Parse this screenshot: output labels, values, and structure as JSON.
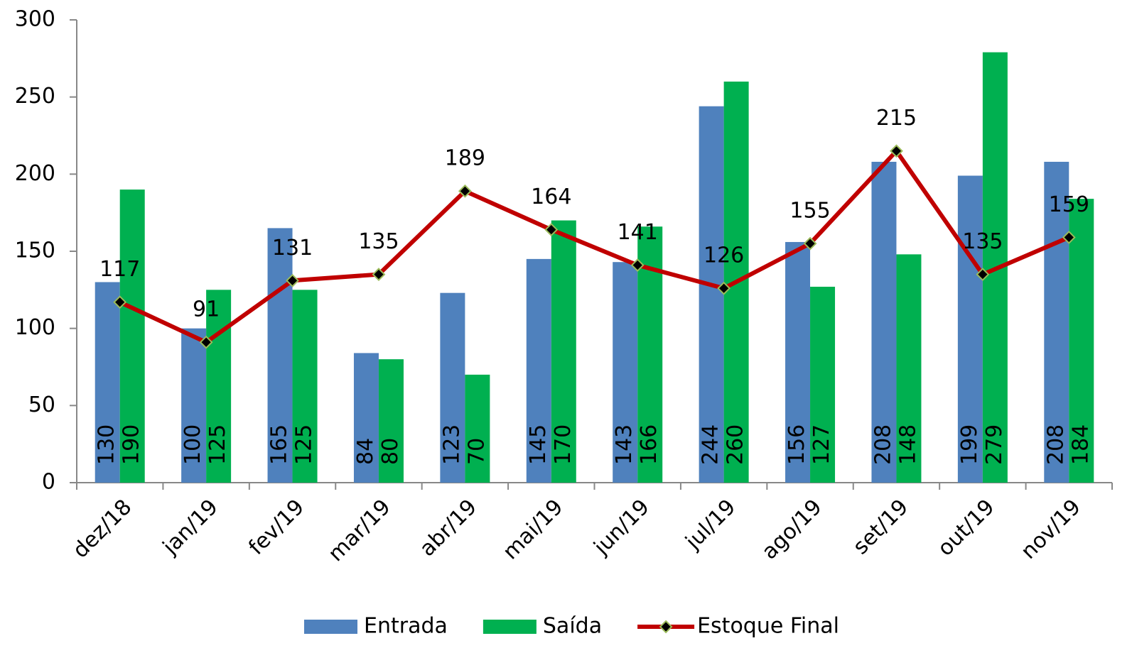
{
  "chart_data": {
    "type": "bar",
    "categories": [
      "dez/18",
      "jan/19",
      "fev/19",
      "mar/19",
      "abr/19",
      "mai/19",
      "jun/19",
      "jul/19",
      "ago/19",
      "set/19",
      "out/19",
      "nov/19"
    ],
    "series": [
      {
        "name": "Entrada",
        "color": "#4f81bd",
        "values": [
          130,
          100,
          165,
          84,
          123,
          145,
          143,
          244,
          156,
          208,
          199,
          208
        ]
      },
      {
        "name": "Saída",
        "color": "#00b050",
        "values": [
          190,
          125,
          125,
          80,
          70,
          170,
          166,
          260,
          127,
          148,
          279,
          184
        ]
      },
      {
        "name": "Estoque Final",
        "color": "#c00000",
        "type": "line",
        "values": [
          117,
          91,
          131,
          135,
          189,
          164,
          141,
          126,
          155,
          215,
          135,
          159
        ]
      }
    ],
    "ylim": [
      0,
      300
    ],
    "yticks": [
      0,
      50,
      100,
      150,
      200,
      250,
      300
    ],
    "legend": "bottom"
  }
}
